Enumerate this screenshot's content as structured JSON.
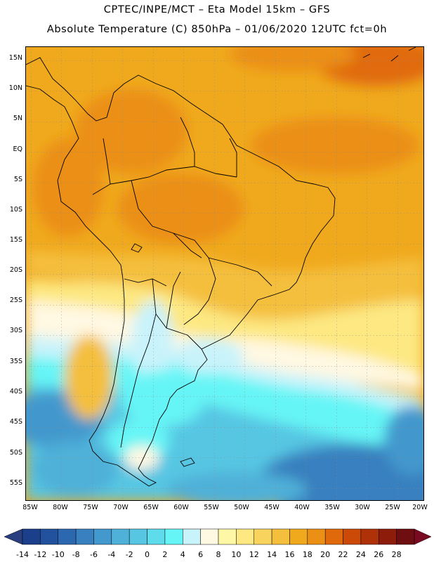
{
  "title": {
    "line1": "CPTEC/INPE/MCT  –   Eta Model 15km  –  GFS",
    "line2": "Absolute Temperature (C) 850hPa – 01/06/2020 12UTC fct=0h"
  },
  "lat_labels": [
    "15N",
    "10N",
    "5N",
    "EQ",
    "5S",
    "10S",
    "15S",
    "20S",
    "25S",
    "30S",
    "35S",
    "40S",
    "45S",
    "50S",
    "55S"
  ],
  "lon_labels": [
    "85W",
    "80W",
    "75W",
    "70W",
    "65W",
    "60W",
    "55W",
    "50W",
    "45W",
    "40W",
    "35W",
    "30W",
    "25W",
    "20W"
  ],
  "colorbar": {
    "labels": [
      "-14",
      "-12",
      "-10",
      "-8",
      "-6",
      "-4",
      "-2",
      "0",
      "2",
      "4",
      "6",
      "8",
      "10",
      "12",
      "14",
      "16",
      "18",
      "20",
      "22",
      "24",
      "26",
      "28"
    ],
    "colors": [
      "#1b3f8b",
      "#22529e",
      "#2c68b0",
      "#3880bf",
      "#4398cd",
      "#4fb0d8",
      "#57c6e3",
      "#5fdcec",
      "#66f5f6",
      "#c9f3fb",
      "#fff8e2",
      "#fef7a6",
      "#fde882",
      "#f8d45e",
      "#f4bf3d",
      "#f0a91d",
      "#eb8f15",
      "#e06a0b",
      "#cc4a08",
      "#ae3108",
      "#8e1c0b",
      "#6e0e10"
    ],
    "under_color": "#2a3f80",
    "over_color": "#7a0a22"
  },
  "map": {
    "domain": "South America",
    "lon_range": [
      -85,
      -20
    ],
    "lat_range": [
      -58,
      16
    ],
    "gridlines": "dotted every 5 degrees"
  }
}
